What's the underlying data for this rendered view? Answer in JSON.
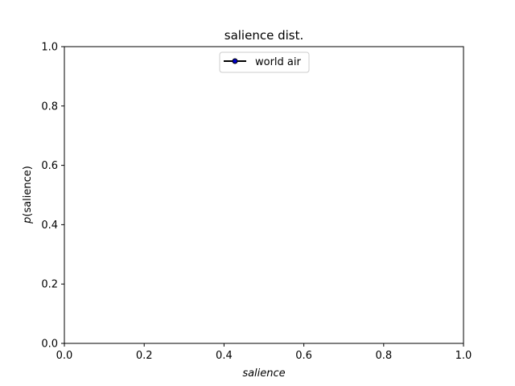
{
  "chart_data": {
    "type": "line",
    "title": "salience dist.",
    "xlabel": "salience",
    "ylabel_italic": "p",
    "ylabel_rest": "(salience)",
    "xlim": [
      0.0,
      1.0
    ],
    "ylim": [
      0.0,
      1.0
    ],
    "x_ticks": [
      "0.0",
      "0.2",
      "0.4",
      "0.6",
      "0.8",
      "1.0"
    ],
    "y_ticks": [
      "0.0",
      "0.2",
      "0.4",
      "0.6",
      "0.8",
      "1.0"
    ],
    "grid": false,
    "legend_position": "upper-center",
    "series": [
      {
        "name": "world air",
        "line_color": "#000000",
        "marker_fill": "#0000cc",
        "marker": "circle",
        "x": [],
        "y": []
      }
    ]
  }
}
